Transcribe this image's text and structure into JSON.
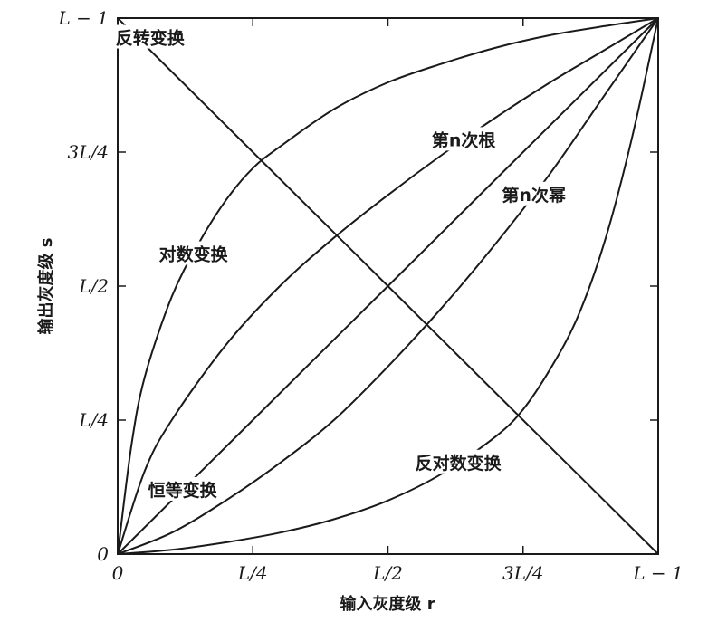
{
  "chart_data": {
    "type": "line",
    "xlabel": "输入灰度级 r",
    "ylabel": "输出灰度级 s",
    "xlim": [
      0,
      1
    ],
    "ylim": [
      0,
      1
    ],
    "x_ticks": [
      {
        "value": 0,
        "label": "0"
      },
      {
        "value": 0.25,
        "label": "L/4"
      },
      {
        "value": 0.5,
        "label": "L/2"
      },
      {
        "value": 0.75,
        "label": "3L/4"
      },
      {
        "value": 1,
        "label": "L − 1"
      }
    ],
    "y_ticks": [
      {
        "value": 0,
        "label": "0"
      },
      {
        "value": 0.25,
        "label": "L/4"
      },
      {
        "value": 0.5,
        "label": "L/2"
      },
      {
        "value": 0.75,
        "label": "3L/4"
      },
      {
        "value": 1,
        "label": "L − 1"
      }
    ],
    "series": [
      {
        "name": "反转变换",
        "x": [
          0,
          1
        ],
        "y": [
          1,
          0
        ]
      },
      {
        "name": "恒等变换",
        "x": [
          0,
          1
        ],
        "y": [
          0,
          1
        ]
      },
      {
        "name": "对数变换",
        "x": [
          0,
          0.025,
          0.05,
          0.1,
          0.15,
          0.2,
          0.25,
          0.3,
          0.4,
          0.5,
          0.6,
          0.7,
          0.8,
          0.9,
          1.0
        ],
        "y": [
          0,
          0.2,
          0.33,
          0.48,
          0.58,
          0.66,
          0.72,
          0.76,
          0.83,
          0.88,
          0.915,
          0.945,
          0.968,
          0.985,
          1.0
        ]
      },
      {
        "name": "第n次根",
        "x": [
          0,
          0.05,
          0.1,
          0.2,
          0.3,
          0.4,
          0.5,
          0.6,
          0.7,
          0.8,
          0.9,
          1.0
        ],
        "y": [
          0,
          0.155,
          0.25,
          0.39,
          0.5,
          0.59,
          0.67,
          0.745,
          0.815,
          0.88,
          0.94,
          1.0
        ]
      },
      {
        "name": "第n次幂",
        "x": [
          0,
          0.1,
          0.2,
          0.3,
          0.4,
          0.5,
          0.6,
          0.7,
          0.8,
          0.9,
          1.0
        ],
        "y": [
          0,
          0.04,
          0.1,
          0.17,
          0.25,
          0.35,
          0.46,
          0.58,
          0.71,
          0.855,
          1.0
        ]
      },
      {
        "name": "反对数变换",
        "x": [
          0,
          0.1,
          0.2,
          0.3,
          0.4,
          0.5,
          0.6,
          0.7,
          0.75,
          0.8,
          0.85,
          0.9,
          0.95,
          1.0
        ],
        "y": [
          0,
          0.008,
          0.022,
          0.04,
          0.065,
          0.1,
          0.15,
          0.22,
          0.27,
          0.345,
          0.44,
          0.58,
          0.77,
          1.0
        ]
      }
    ],
    "curve_labels": [
      "反转变换",
      "对数变换",
      "第n次根",
      "第n次幂",
      "恒等变换",
      "反对数变换"
    ],
    "grid": false
  }
}
